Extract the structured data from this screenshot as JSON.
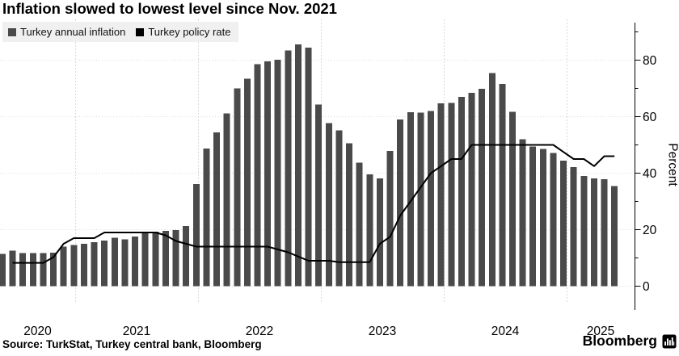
{
  "header": {
    "title": "Inflation slowed to lowest level since Nov. 2021"
  },
  "footer": {
    "source": "Source: TurkStat, Turkey central bank, Bloomberg",
    "brand": "Bloomberg",
    "brand_icon": "bloomberg-terminal-icon"
  },
  "chart_data": {
    "type": "bar",
    "title": "Inflation slowed to lowest level since Nov. 2021",
    "xlabel": "",
    "ylabel": "Percent",
    "ylim": [
      0,
      92
    ],
    "yticks_major": [
      0,
      20,
      40,
      60,
      80
    ],
    "yticks_minor": [
      10,
      30,
      50,
      70,
      90
    ],
    "grid": "dotted horizontal lines at major y ticks; light vertical lines at year starts",
    "legend_position": "top-left",
    "y_axis_side": "right",
    "x_range": {
      "start": "2020-05",
      "end": "2025-05",
      "interval": "month",
      "points": 61
    },
    "year_labels": [
      "2020",
      "2021",
      "2022",
      "2023",
      "2024",
      "2025"
    ],
    "series": [
      {
        "name": "Turkey annual inflation",
        "type": "bar",
        "color": "#4a4a4a",
        "values": [
          11.39,
          12.62,
          11.76,
          11.77,
          11.75,
          11.89,
          14.03,
          14.6,
          14.97,
          15.61,
          16.19,
          17.14,
          16.59,
          17.53,
          18.95,
          19.25,
          19.58,
          19.89,
          21.31,
          36.08,
          48.69,
          54.44,
          61.14,
          69.97,
          73.5,
          78.62,
          79.6,
          80.21,
          83.45,
          85.51,
          84.39,
          64.27,
          57.68,
          55.18,
          50.51,
          43.68,
          39.59,
          38.21,
          47.83,
          58.94,
          61.53,
          61.36,
          61.98,
          64.77,
          64.86,
          67.07,
          68.5,
          69.8,
          75.45,
          71.6,
          61.78,
          51.97,
          49.38,
          48.58,
          47.09,
          44.38,
          42.12,
          39.05,
          38.1,
          37.86,
          35.41
        ]
      },
      {
        "name": "Turkey policy rate",
        "type": "line",
        "color": "#000000",
        "values": [
          8.25,
          8.25,
          8.25,
          8.25,
          8.25,
          10.25,
          15.0,
          17.0,
          17.0,
          17.0,
          19.0,
          19.0,
          19.0,
          19.0,
          19.0,
          19.0,
          18.0,
          16.0,
          15.0,
          14.0,
          14.0,
          14.0,
          14.0,
          14.0,
          14.0,
          14.0,
          14.0,
          13.0,
          12.0,
          10.5,
          9.0,
          9.0,
          9.0,
          8.5,
          8.5,
          8.5,
          8.5,
          15.0,
          17.5,
          25.0,
          30.0,
          35.0,
          40.0,
          42.5,
          45.0,
          45.0,
          50.0,
          50.0,
          50.0,
          50.0,
          50.0,
          50.0,
          50.0,
          50.0,
          50.0,
          47.5,
          45.0,
          45.0,
          42.5,
          46.0,
          46.0
        ]
      }
    ]
  }
}
